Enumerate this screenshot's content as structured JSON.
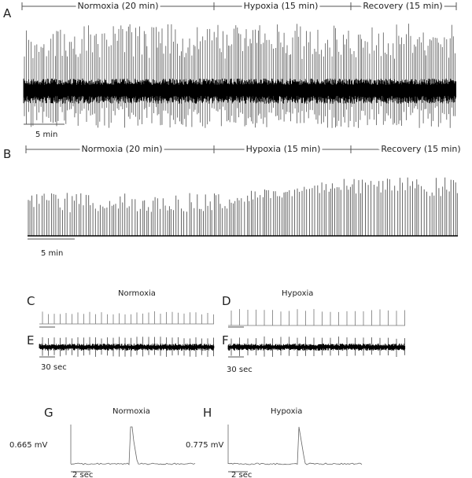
{
  "panels": [
    {
      "label": "A",
      "segments": [
        "Normoxia (20 min)",
        "Hypoxia (15 min)",
        "Recovery (15 min)"
      ],
      "scale_bar": "5 min"
    },
    {
      "label": "B",
      "segments": [
        "Normoxia (20 min)",
        "Hypoxia (15 min)",
        "Recovery (15 min)"
      ],
      "scale_bar": "5 min"
    },
    {
      "label": "C",
      "title": "Normoxia"
    },
    {
      "label": "D",
      "title": "Hypoxia"
    },
    {
      "label": "E",
      "scale_bar": "30 sec"
    },
    {
      "label": "F",
      "scale_bar": "30 sec"
    },
    {
      "label": "G",
      "title": "Normoxia",
      "amplitude": "0.665 mV",
      "scale_bar": "2 sec"
    },
    {
      "label": "H",
      "title": "Hypoxia",
      "amplitude": "0.775 mV",
      "scale_bar": "2 sec"
    }
  ]
}
